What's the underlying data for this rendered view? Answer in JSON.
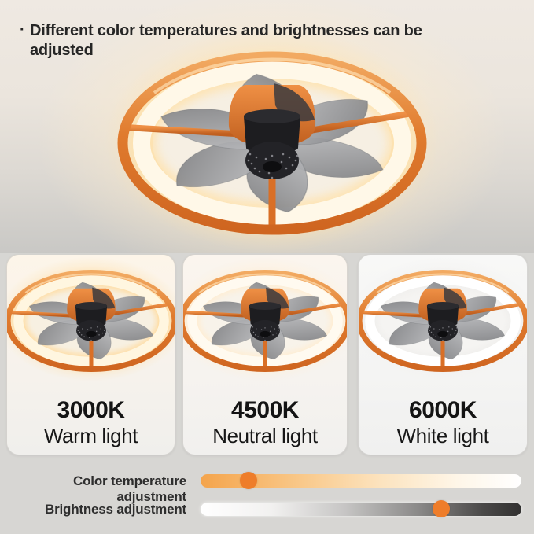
{
  "headline": {
    "bullet": "·",
    "text": "Different color temperatures and brightnesses can be adjusted"
  },
  "product": {
    "name": "orange ring ceiling fan with light",
    "ring_color": "#E07B2E",
    "blade_color": "#8E8F92",
    "glow_color": "#FFE2AC"
  },
  "panels": [
    {
      "kelvin": "3000K",
      "label": "Warm light",
      "glow_hex": "#FFDCA0",
      "led_hex": "#FFF6E0",
      "interior_hex": "#F7F0E2"
    },
    {
      "kelvin": "4500K",
      "label": "Neutral light",
      "glow_hex": "#FFEDD2",
      "led_hex": "#FFFAF0",
      "interior_hex": "#F8F3EA"
    },
    {
      "kelvin": "6000K",
      "label": "White light",
      "glow_hex": "#F0EFED",
      "led_hex": "#FFFFFF",
      "interior_hex": "#F5F4F2"
    }
  ],
  "sliders": [
    {
      "label": "Color temperature adjustment",
      "value_percent": 15,
      "knob_color": "#EE7D2A",
      "track_gradient": [
        "#F4A44C",
        "#FFFFFF"
      ]
    },
    {
      "label": "Brightness adjustment",
      "value_percent": 75,
      "knob_color": "#EE7D2A",
      "track_gradient": [
        "#FFFFFF",
        "#323130"
      ]
    }
  ]
}
